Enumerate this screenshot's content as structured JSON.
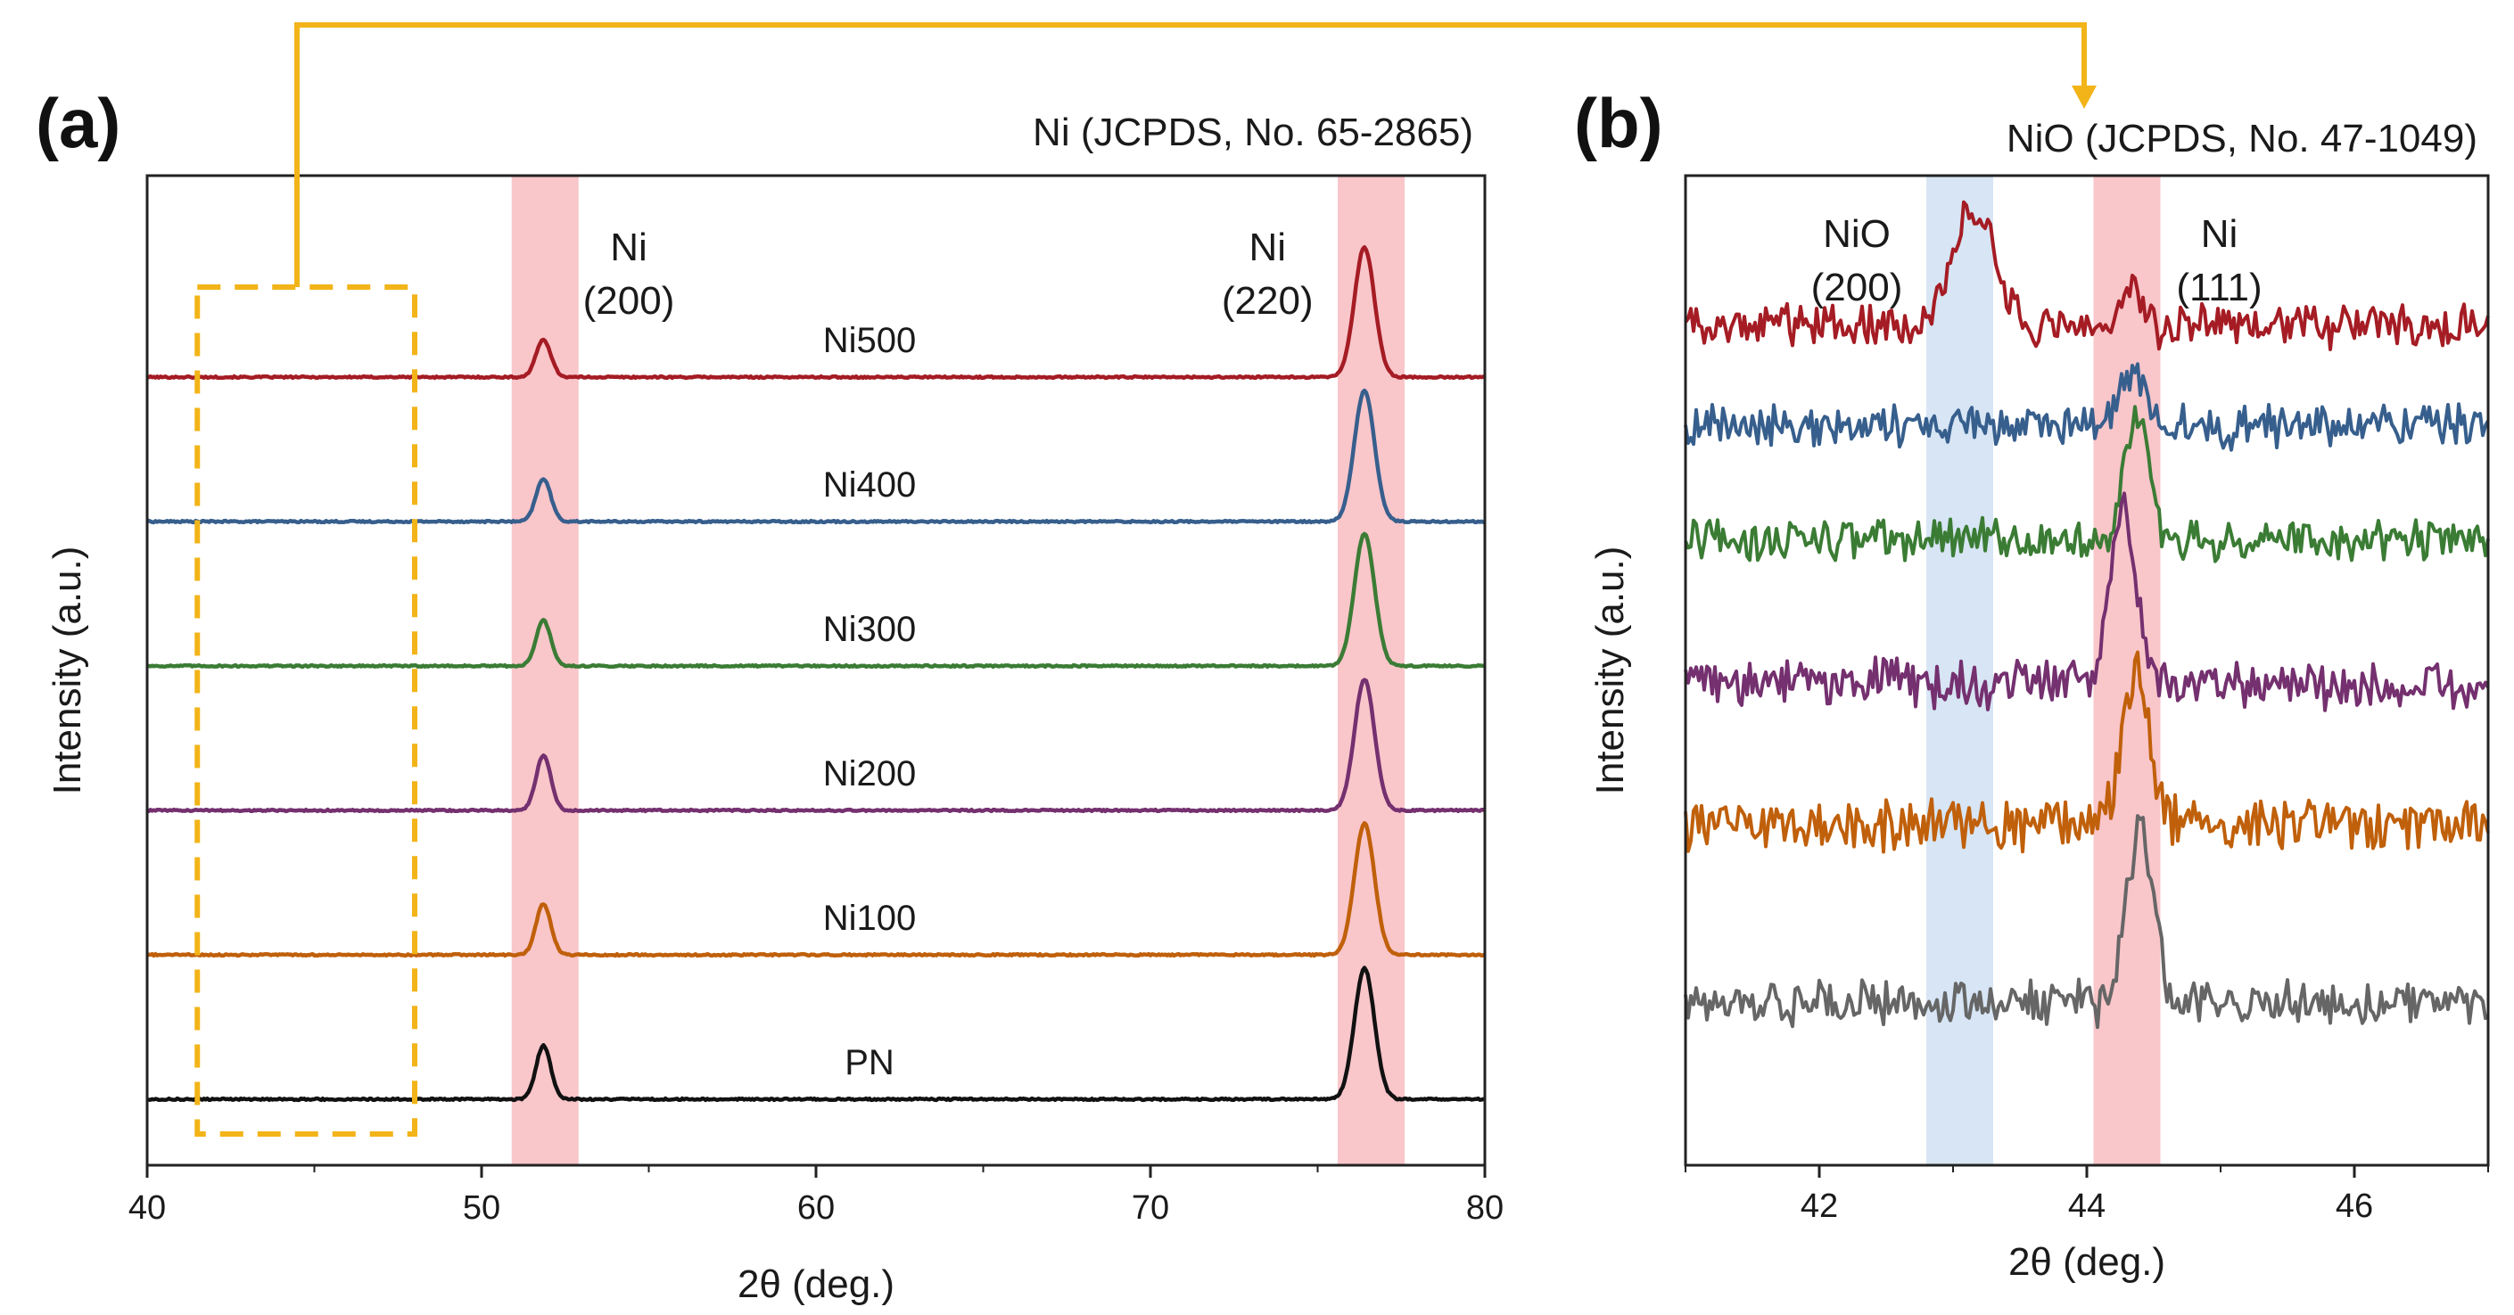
{
  "figure": {
    "panel_a_label": "(a)",
    "panel_b_label": "(b)",
    "colors": {
      "band_red": "#f9c6ca",
      "band_blue": "#d7e5f4",
      "connector": "#f2b418",
      "frame": "#222222"
    }
  },
  "chart_data": [
    {
      "type": "line",
      "panel": "(a)",
      "title": "Ni (JCPDS, No. 65-2865)",
      "xlabel": "2θ (deg.)",
      "ylabel": "Intensity (a.u.)",
      "xlim": [
        40,
        80
      ],
      "xticks": [
        40,
        50,
        60,
        70,
        80
      ],
      "yticks": "none",
      "x_step": 0.05,
      "highlight_bands": [
        {
          "x0": 50.9,
          "x1": 52.9,
          "color": "#f9c6ca"
        },
        {
          "x0": 75.6,
          "x1": 77.6,
          "color": "#f9c6ca"
        }
      ],
      "zoom_region": {
        "x0": 41.5,
        "x1": 48.0,
        "linked_to": "(b)"
      },
      "peak_labels": [
        {
          "line1": "Ni",
          "line2": "(200)",
          "x": 54.4
        },
        {
          "line1": "Ni",
          "line2": "(220)",
          "x": 73.5
        }
      ],
      "peaks": [
        {
          "center": 51.85,
          "width": 0.22
        },
        {
          "center": 76.4,
          "width": 0.3
        }
      ],
      "series": [
        {
          "name": "Ni500",
          "color": "#a51c24",
          "offset": 5,
          "peak_heights": [
            0.28,
            0.97
          ]
        },
        {
          "name": "Ni400",
          "color": "#375f8d",
          "offset": 4,
          "peak_heights": [
            0.32,
            0.98
          ]
        },
        {
          "name": "Ni300",
          "color": "#3b7c35",
          "offset": 3,
          "peak_heights": [
            0.34,
            0.99
          ]
        },
        {
          "name": "Ni200",
          "color": "#74306f",
          "offset": 2,
          "peak_heights": [
            0.41,
            0.98
          ]
        },
        {
          "name": "Ni100",
          "color": "#c0600b",
          "offset": 1,
          "peak_heights": [
            0.38,
            0.98
          ]
        },
        {
          "name": "PN",
          "color": "#111111",
          "offset": 0,
          "peak_heights": [
            0.4,
            0.98
          ]
        }
      ]
    },
    {
      "type": "line",
      "panel": "(b)",
      "title": "NiO (JCPDS, No. 47-1049)",
      "xlabel": "2θ (deg.)",
      "ylabel": "Intensity (a.u.)",
      "xlim": [
        41,
        47
      ],
      "xticks": [
        42,
        44,
        46
      ],
      "yticks": "none",
      "x_step": 0.02,
      "highlight_bands": [
        {
          "x0": 42.8,
          "x1": 43.3,
          "color": "#d7e5f4"
        },
        {
          "x0": 44.05,
          "x1": 44.55,
          "color": "#f9c6ca"
        }
      ],
      "peak_labels": [
        {
          "line1": "NiO",
          "line2": "(200)",
          "x": 42.28
        },
        {
          "line1": "Ni",
          "line2": "(111)",
          "x": 44.99
        }
      ],
      "series": [
        {
          "name": "Ni500",
          "color": "#a51c24",
          "baseline": 8.7,
          "noise": 0.38,
          "peaks": [
            {
              "center": 43.15,
              "height": 1.35,
              "width": 0.16
            },
            {
              "center": 44.32,
              "height": 0.55,
              "width": 0.06
            }
          ]
        },
        {
          "name": "Ni400",
          "color": "#375f8d",
          "baseline": 7.55,
          "noise": 0.38,
          "peaks": [
            {
              "center": 44.35,
              "height": 0.7,
              "width": 0.1
            }
          ]
        },
        {
          "name": "Ni300",
          "color": "#3b7c35",
          "baseline": 6.25,
          "noise": 0.38,
          "peaks": [
            {
              "center": 44.38,
              "height": 1.45,
              "width": 0.09
            }
          ]
        },
        {
          "name": "Ni200",
          "color": "#74306f",
          "baseline": 4.6,
          "noise": 0.42,
          "peaks": [
            {
              "center": 44.27,
              "height": 2.0,
              "width": 0.1
            }
          ]
        },
        {
          "name": "Ni100",
          "color": "#c0600b",
          "baseline": 3.0,
          "noise": 0.45,
          "peaks": [
            {
              "center": 44.37,
              "height": 1.75,
              "width": 0.1
            }
          ]
        },
        {
          "name": "PN",
          "color": "#666666",
          "baseline": 0.95,
          "noise": 0.4,
          "peaks": [
            {
              "center": 44.4,
              "height": 2.0,
              "width": 0.1
            }
          ]
        }
      ]
    }
  ]
}
